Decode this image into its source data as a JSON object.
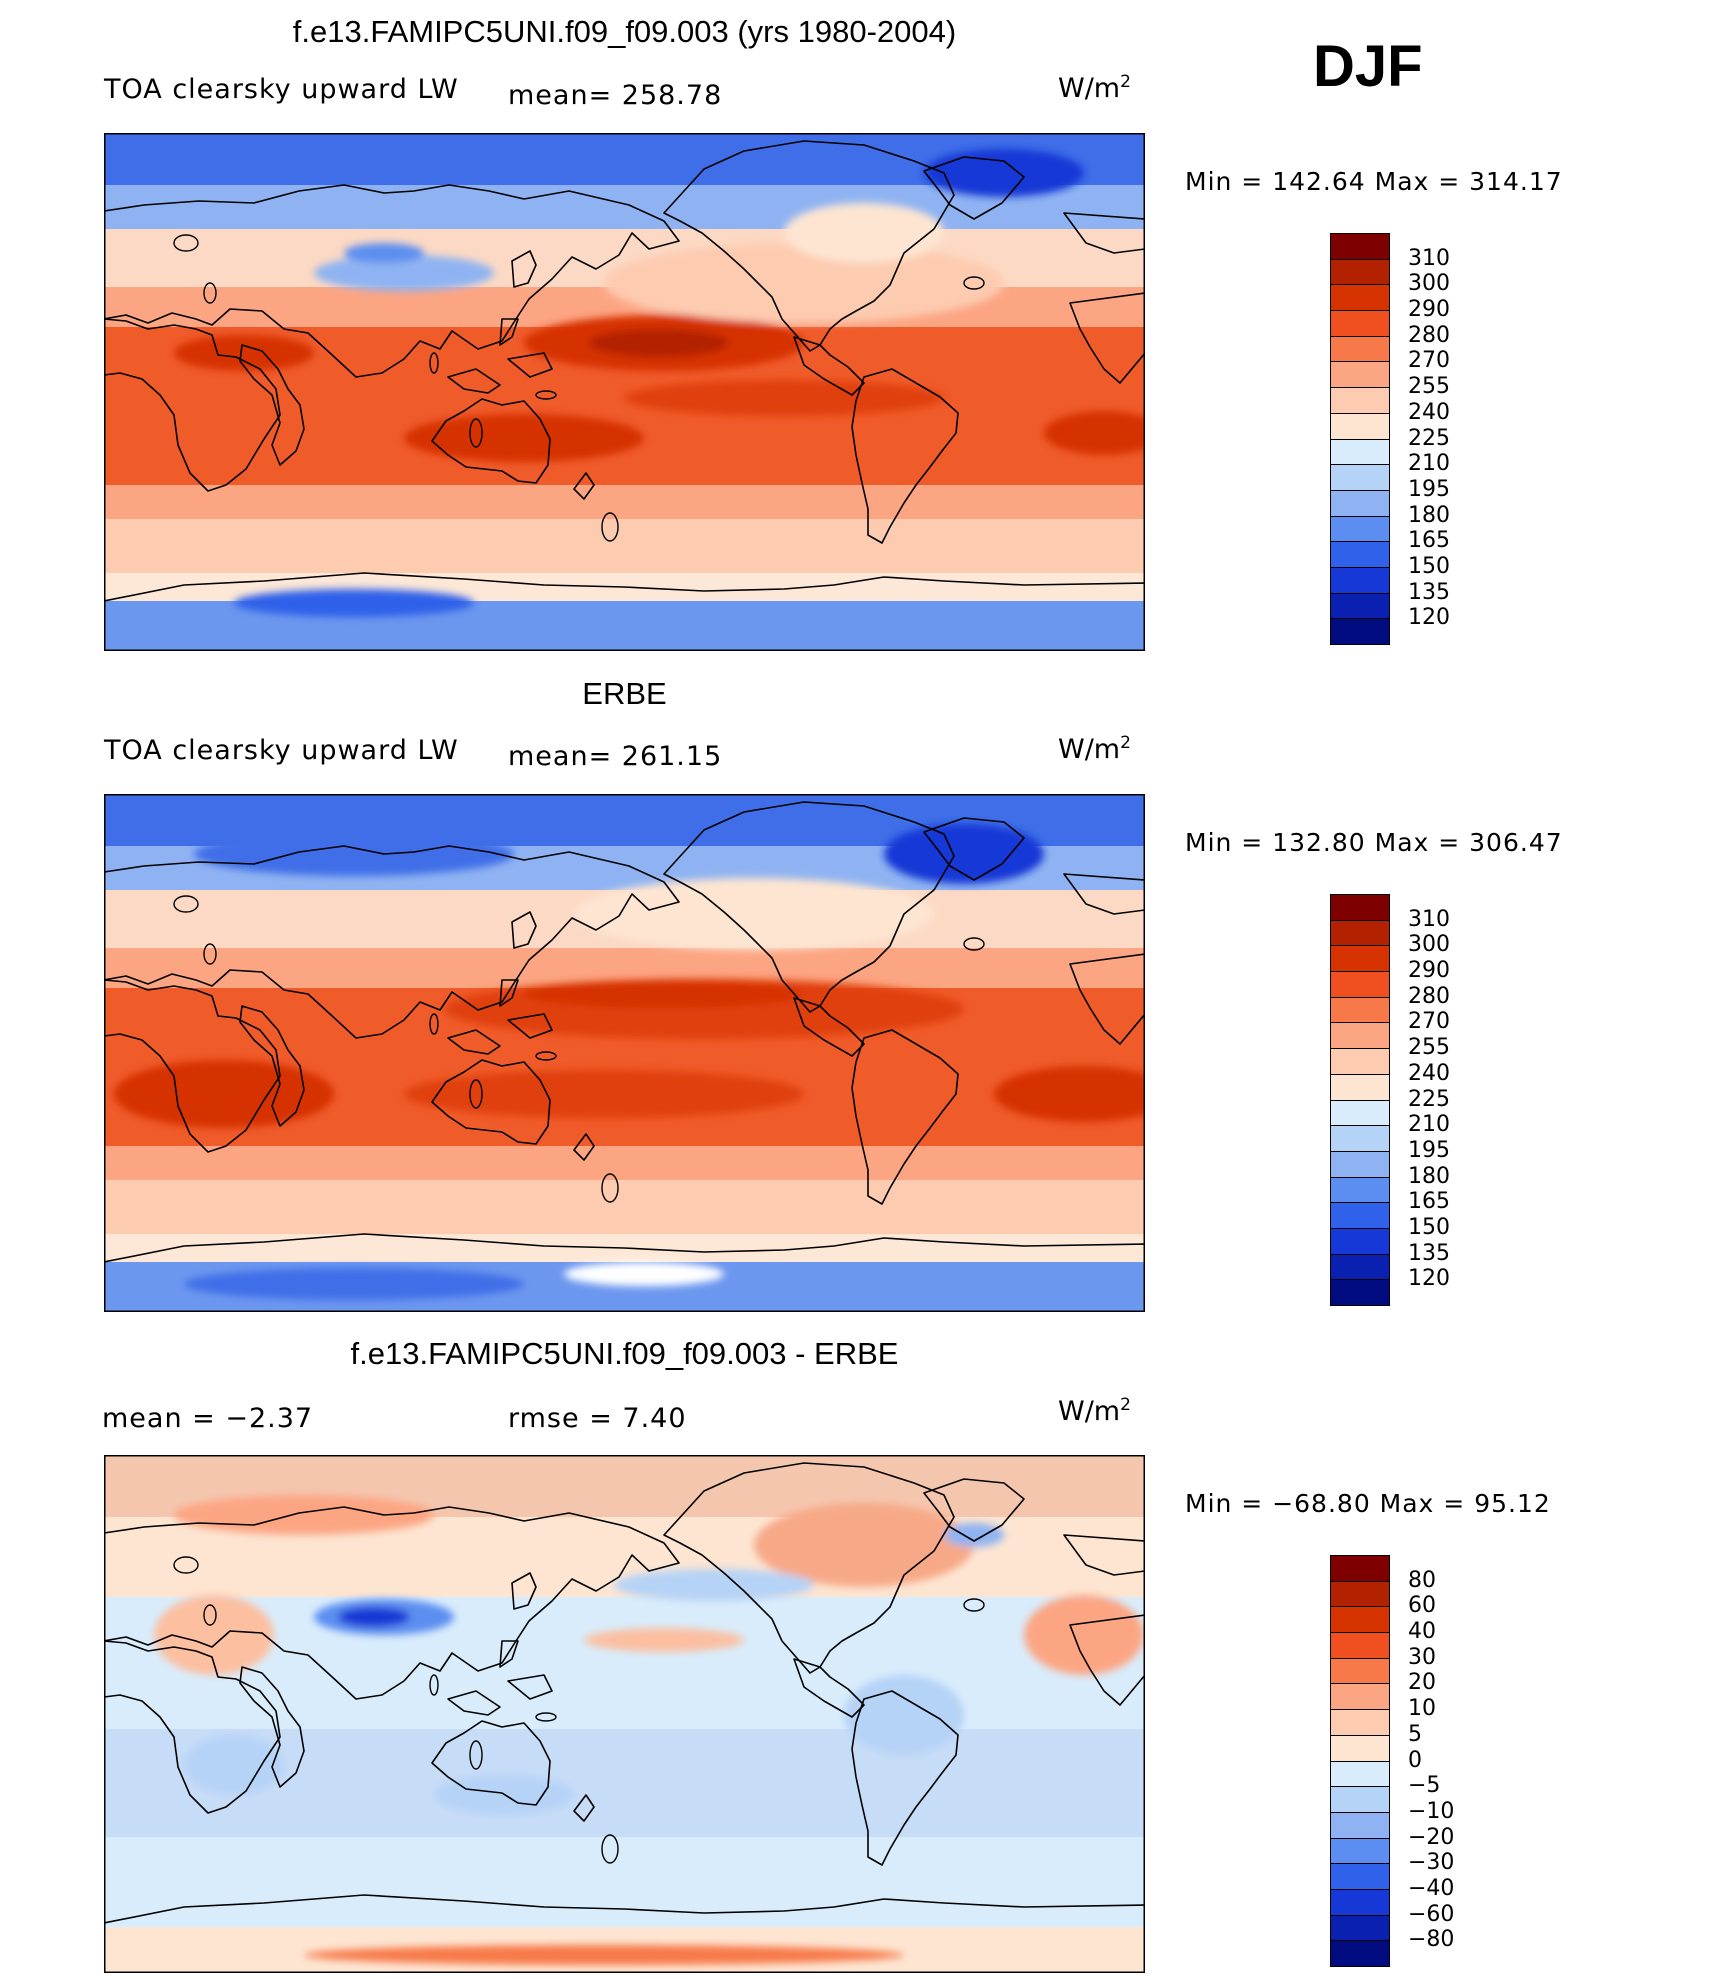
{
  "season": "DJF",
  "panels": [
    {
      "id": "model",
      "title": "f.e13.FAMIPC5UNI.f09_f09.003 (yrs 1980-2004)",
      "variable": "TOA clearsky upward LW",
      "mean_text": "mean= 258.78",
      "units": "W/m",
      "units_sup": "2",
      "minmax": "Min  =  142.64  Max  =  314.17",
      "min": 142.64,
      "max": 314.17,
      "colorbar": {
        "levels": [
          "310",
          "300",
          "290",
          "280",
          "270",
          "255",
          "240",
          "225",
          "210",
          "195",
          "180",
          "165",
          "150",
          "135",
          "120"
        ],
        "colors": [
          "#7f0000",
          "#b22200",
          "#d63300",
          "#f05020",
          "#f7794a",
          "#fca583",
          "#fdcbb0",
          "#fde5d2",
          "#d9ecfb",
          "#b5d3f7",
          "#8fb3f2",
          "#5b8ef0",
          "#2f61ea",
          "#1538d6",
          "#0a20b0",
          "#000c80"
        ]
      }
    },
    {
      "id": "obs",
      "title": "ERBE",
      "variable": "TOA clearsky upward LW",
      "mean_text": "mean= 261.15",
      "units": "W/m",
      "units_sup": "2",
      "minmax": "Min  =  132.80  Max  =  306.47",
      "min": 132.8,
      "max": 306.47,
      "colorbar": {
        "levels": [
          "310",
          "300",
          "290",
          "280",
          "270",
          "255",
          "240",
          "225",
          "210",
          "195",
          "180",
          "165",
          "150",
          "135",
          "120"
        ],
        "colors": [
          "#7f0000",
          "#b22200",
          "#d63300",
          "#f05020",
          "#f7794a",
          "#fca583",
          "#fdcbb0",
          "#fde5d2",
          "#d9ecfb",
          "#b5d3f7",
          "#8fb3f2",
          "#5b8ef0",
          "#2f61ea",
          "#1538d6",
          "#0a20b0",
          "#000c80"
        ]
      }
    },
    {
      "id": "diff",
      "title": "f.e13.FAMIPC5UNI.f09_f09.003 - ERBE",
      "mean_text": "mean =     −2.37",
      "rmse_text": "rmse =     7.40",
      "units": "W/m",
      "units_sup": "2",
      "minmax": "Min  =  −68.80  Max  =   95.12",
      "min": -68.8,
      "max": 95.12,
      "colorbar": {
        "levels": [
          "80",
          "60",
          "40",
          "30",
          "20",
          "10",
          "5",
          "0",
          "−5",
          "−10",
          "−20",
          "−30",
          "−40",
          "−60",
          "−80"
        ],
        "colors": [
          "#7f0000",
          "#b22200",
          "#d63300",
          "#f05020",
          "#f7794a",
          "#fca583",
          "#fdcbb0",
          "#fde5d2",
          "#d9ecfb",
          "#b5d3f7",
          "#8fb3f2",
          "#5b8ef0",
          "#2f61ea",
          "#1538d6",
          "#0a20b0",
          "#000c80"
        ]
      }
    }
  ]
}
